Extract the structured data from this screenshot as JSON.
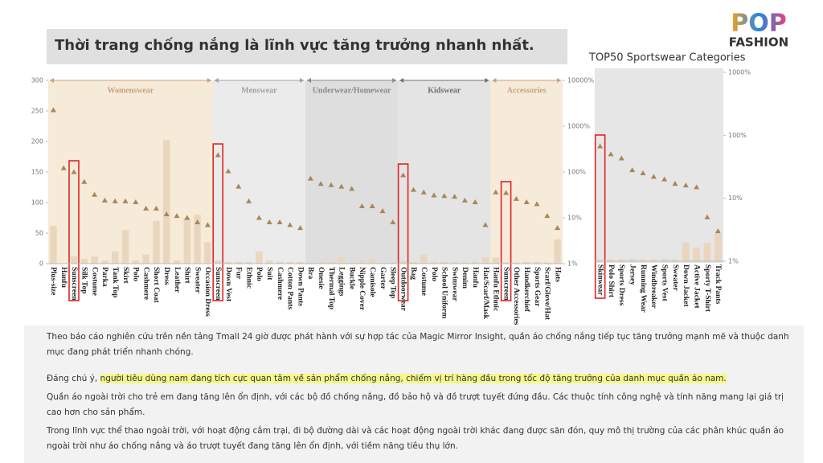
{
  "slide": {
    "title": "Thời trang chống nắng là lĩnh vực tăng trưởng nhanh nhất.",
    "logo": {
      "top": "POP",
      "bottom": "FASHION"
    },
    "paragraphs": [
      {
        "text": "Theo báo cáo nghiên cứu trên nền tảng Tmall 24 giờ được phát hành với sự hợp tác của Magic Mirror Insight, quần áo chống nắng tiếp tục tăng trưởng mạnh mẽ và thuộc  danh mục đang phát triển nhanh chóng."
      },
      {
        "text": "Đáng chú ý, ",
        "highlight": "người tiêu dùng nam đang tích cực quan tâm về sản phẩm chống nắng, chiếm vị trí hàng đầu trong tốc độ tăng trưởng của danh mục quần áo nam."
      },
      {
        "text": "Quần áo ngoài trời cho trẻ em đang tăng lên ổn định, với các bộ đồ chống nắng, đồ bảo hộ và đồ trượt tuyết đứng đầu. Các thuộc tính công nghệ và tính năng mang lại giá trị cao hơn cho sản phẩm."
      },
      {
        "text": "Trong lĩnh vực thể thao ngoài trời, với hoạt động cắm trại, đi bộ đường dài và các hoạt động ngoài trời khác đang được săn đón, quy mô thị trường của các phân khúc quần áo ngoài trời như áo chống nắng và áo trượt tuyết đang tăng lên ổn định, với tiềm năng tiêu thụ lớn."
      }
    ]
  },
  "chart_data": [
    {
      "type": "combo",
      "bar_color": "#ead6bd",
      "marker_color": "#a8865a",
      "highlight_color": "#e02424",
      "ylim": [
        0,
        300
      ],
      "yticks": [
        0,
        50,
        100,
        150,
        200,
        250,
        300
      ],
      "y2lim": [
        1,
        10000
      ],
      "y2_scale": "log",
      "y2ticks": [
        {
          "value": 1,
          "label": "1%"
        },
        {
          "value": 10,
          "label": "10%"
        },
        {
          "value": 100,
          "label": "100%"
        },
        {
          "value": 1000,
          "label": "1000%"
        },
        {
          "value": 10000,
          "label": "10000%"
        }
      ],
      "groups": [
        {
          "name": "Womenswear",
          "color": "#f6ead9",
          "text_color": "#c9a27a",
          "highlight": 2,
          "categories": [
            "Plus-size",
            "Hanfu",
            "Sunscreen",
            "Silk Top",
            "Costume",
            "Parka",
            "Tank Top",
            "Skirt",
            "Polo",
            "Cashmere",
            "Short Coat",
            "Dress",
            "Leather",
            "Shirt",
            "Sweater",
            "Occasion Dress"
          ],
          "values": [
            62,
            0,
            12,
            8,
            12,
            5,
            20,
            55,
            5,
            15,
            70,
            202,
            5,
            75,
            80,
            35
          ],
          "growth": [
            2240,
            122,
            100,
            61,
            32,
            24,
            23,
            23,
            22,
            16,
            16,
            12,
            11,
            10,
            8,
            7
          ]
        },
        {
          "name": "Menswear",
          "color": "#ebebeb",
          "text_color": "#a0a0a0",
          "highlight": 0,
          "categories": [
            "Sunscreen",
            "Down Vest",
            "Fur",
            "Ethnic",
            "Polo",
            "Suit",
            "Cashmere",
            "Cotton Pants",
            "Down Pants"
          ],
          "values": [
            5,
            3,
            3,
            3,
            20,
            5,
            3,
            3,
            3
          ],
          "growth": [
            233,
            104,
            48,
            23,
            10,
            8,
            8,
            7,
            6
          ]
        },
        {
          "name": "Underwear/Homewear",
          "color": "#dedede",
          "text_color": "#8a8a8a",
          "categories": [
            "Bra",
            "Onesie",
            "Thermal Top",
            "Leggings",
            "Buckle",
            "Nipple Cover",
            "Camisole",
            "Garter",
            "Sleep Top"
          ],
          "values": [
            2,
            3,
            3,
            10,
            2,
            5,
            8,
            2,
            3
          ],
          "growth": [
            72,
            55,
            52,
            48,
            43,
            18,
            18,
            14,
            8
          ]
        },
        {
          "name": "Kidswear",
          "color": "#e4e4e4",
          "text_color": "#707070",
          "highlight": 0,
          "categories": [
            "Outdoorwear",
            "Bag",
            "Costume",
            "Polo",
            "School Uniform",
            "Swimwear",
            "Denim",
            "Hanfu",
            "Hat/Scarf/Mask"
          ],
          "values": [
            5,
            3,
            15,
            3,
            3,
            3,
            2,
            3,
            10
          ],
          "growth": [
            85,
            41,
            36,
            31,
            30,
            29,
            24,
            22,
            7
          ]
        },
        {
          "name": "Accessories",
          "color": "#f6ead9",
          "text_color": "#c9a27a",
          "highlight": 1,
          "categories": [
            "Hanfu Ethnic",
            "Sunscreen",
            "Other Accessories",
            "Handkerchief",
            "Sports Gear",
            "Scarf/Glove/Hat",
            "Hats"
          ],
          "values": [
            10,
            2,
            2,
            3,
            3,
            2,
            40
          ],
          "growth": [
            36,
            35,
            26,
            22,
            20,
            11,
            6
          ]
        }
      ]
    },
    {
      "type": "combo",
      "title": "TOP50 Sportswear Categories",
      "background": "#e6e6e6",
      "bar_color": "#ead6bd",
      "marker_color": "#a8865a",
      "highlight_color": "#e02424",
      "highlight": 0,
      "ylim": [
        0,
        300
      ],
      "y2lim": [
        1,
        1000
      ],
      "y2_scale": "log",
      "y2ticks": [
        {
          "value": 1,
          "label": "1%"
        },
        {
          "value": 10,
          "label": "10%"
        },
        {
          "value": 100,
          "label": "100%"
        },
        {
          "value": 1000,
          "label": "1000%"
        }
      ],
      "categories": [
        "Skinwear",
        "Polo Shirt",
        "Sports Dress",
        "Jersey",
        "Running Wear",
        "Windbreaker",
        "Sports Vest",
        "Sweater",
        "Down Jacket",
        "Active Jacket",
        "Sporty T-Shirt",
        "Track Pants"
      ],
      "values": [
        3,
        3,
        3,
        3,
        3,
        3,
        3,
        3,
        30,
        22,
        29,
        44
      ],
      "growth": [
        67,
        50,
        43,
        28,
        25,
        22,
        20,
        17,
        16,
        15,
        5,
        3
      ]
    }
  ]
}
